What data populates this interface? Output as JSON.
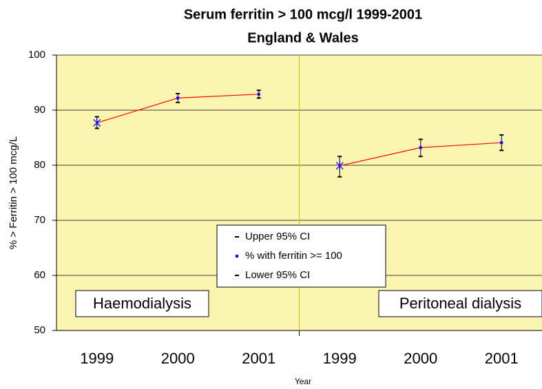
{
  "chart_data": {
    "type": "line",
    "title": "Serum ferritin > 100 mcg/l 1999-2001",
    "subtitle": "England & Wales",
    "x_label": "Year",
    "y_label": "% > Ferritin > 100 mcg/L",
    "ylim": [
      50,
      100
    ],
    "yticks": [
      50,
      60,
      70,
      80,
      90,
      100
    ],
    "grid": true,
    "series": [
      {
        "name": "Upper 95% CI",
        "color": "#000000"
      },
      {
        "name": "% with ferritin >= 100",
        "color": "#0000ff",
        "line_color": "#ff0000"
      },
      {
        "name": "Lower 95% CI",
        "color": "#000000"
      }
    ],
    "panels": [
      {
        "label": "Haemodialysis",
        "categories": [
          "1999",
          "2000",
          "2001"
        ],
        "upper": [
          88.8,
          93.0,
          93.6
        ],
        "values": [
          87.7,
          92.2,
          92.9
        ],
        "lower": [
          86.7,
          91.4,
          92.2
        ]
      },
      {
        "label": "Peritoneal dialysis",
        "categories": [
          "1999",
          "2000",
          "2001"
        ],
        "upper": [
          81.6,
          84.7,
          85.5
        ],
        "values": [
          79.9,
          83.2,
          84.1
        ],
        "lower": [
          77.9,
          81.6,
          82.7
        ]
      }
    ]
  }
}
